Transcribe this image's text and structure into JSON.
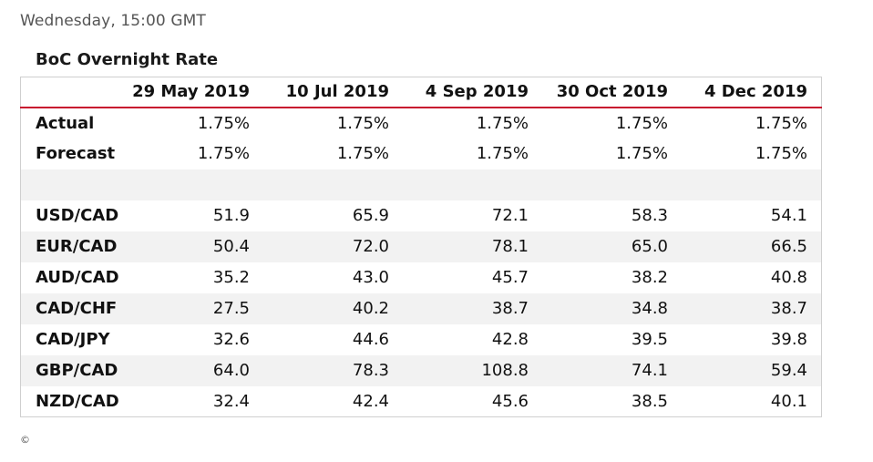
{
  "timestamp": "Wednesday, 15:00 GMT",
  "table": {
    "title": "BoC Overnight Rate",
    "columns": [
      "29 May 2019",
      "10 Jul 2019",
      "4 Sep 2019",
      "30 Oct 2019",
      "4 Dec 2019"
    ],
    "rows": [
      {
        "label": "Actual",
        "values": [
          "1.75%",
          "1.75%",
          "1.75%",
          "1.75%",
          "1.75%"
        ]
      },
      {
        "label": "Forecast",
        "values": [
          "1.75%",
          "1.75%",
          "1.75%",
          "1.75%",
          "1.75%"
        ]
      },
      {
        "label": "",
        "values": [
          "",
          "",
          "",
          "",
          ""
        ]
      },
      {
        "label": "USD/CAD",
        "values": [
          "51.9",
          "65.9",
          "72.1",
          "58.3",
          "54.1"
        ]
      },
      {
        "label": "EUR/CAD",
        "values": [
          "50.4",
          "72.0",
          "78.1",
          "65.0",
          "66.5"
        ]
      },
      {
        "label": "AUD/CAD",
        "values": [
          "35.2",
          "43.0",
          "45.7",
          "38.2",
          "40.8"
        ]
      },
      {
        "label": "CAD/CHF",
        "values": [
          "27.5",
          "40.2",
          "38.7",
          "34.8",
          "38.7"
        ]
      },
      {
        "label": "CAD/JPY",
        "values": [
          "32.6",
          "44.6",
          "42.8",
          "39.5",
          "39.8"
        ]
      },
      {
        "label": "GBP/CAD",
        "values": [
          "64.0",
          "78.3",
          "108.8",
          "74.1",
          "59.4"
        ]
      },
      {
        "label": "NZD/CAD",
        "values": [
          "32.4",
          "42.4",
          "45.6",
          "38.5",
          "40.1"
        ]
      }
    ]
  },
  "colors": {
    "header_rule": "#c8102e",
    "row_shade": "#f2f2f2",
    "border": "#cfcfcf"
  },
  "footer": {
    "copyright": "©"
  }
}
